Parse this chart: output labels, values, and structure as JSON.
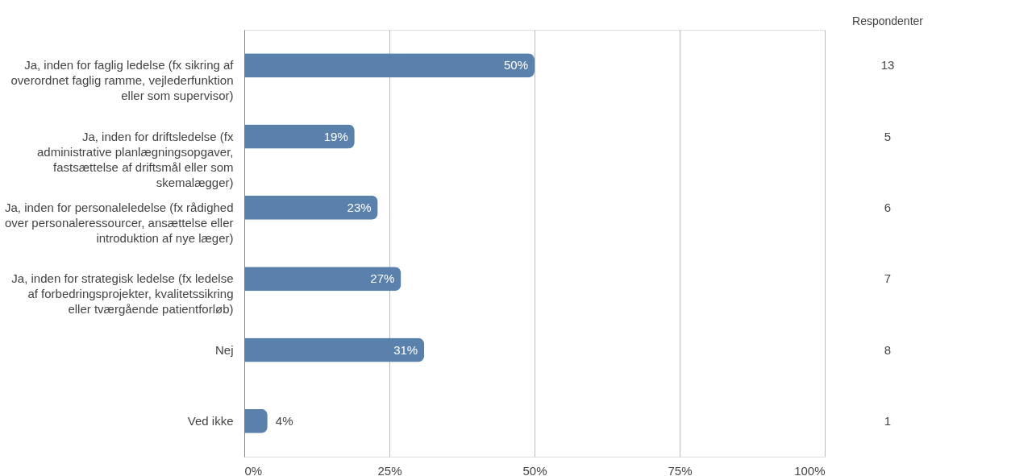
{
  "chart_data": {
    "type": "bar",
    "orientation": "horizontal",
    "categories": [
      "Ja, inden for faglig ledelse (fx sikring af overordnet faglig ramme, vejlederfunktion eller som supervisor)",
      "Ja, inden for driftsledelse (fx administrative planlægningsopgaver, fastsættelse af driftsmål eller som skemalægger)",
      "Ja, inden for personaleledelse (fx rådighed over personaleressourcer, ansættelse eller introduktion af nye læger)",
      "Ja, inden for strategisk ledelse (fx ledelse af forbedringsprojekter, kvalitetssikring eller tværgående patientforløb)",
      "Nej",
      "Ved ikke"
    ],
    "values": [
      50,
      19,
      23,
      27,
      31,
      4
    ],
    "value_labels": [
      "50%",
      "19%",
      "23%",
      "27%",
      "31%",
      "4%"
    ],
    "color": "#5a80ac",
    "xlim": [
      0,
      100
    ],
    "xticks": [
      {
        "value": 0,
        "label": "0%"
      },
      {
        "value": 25,
        "label": "25%"
      },
      {
        "value": 50,
        "label": "50%"
      },
      {
        "value": 75,
        "label": "75%"
      },
      {
        "value": 100,
        "label": "100%"
      }
    ],
    "grid": "x",
    "annotations": [
      "Respondenter",
      "13",
      "5",
      "6",
      "7",
      "8",
      "1"
    ]
  }
}
